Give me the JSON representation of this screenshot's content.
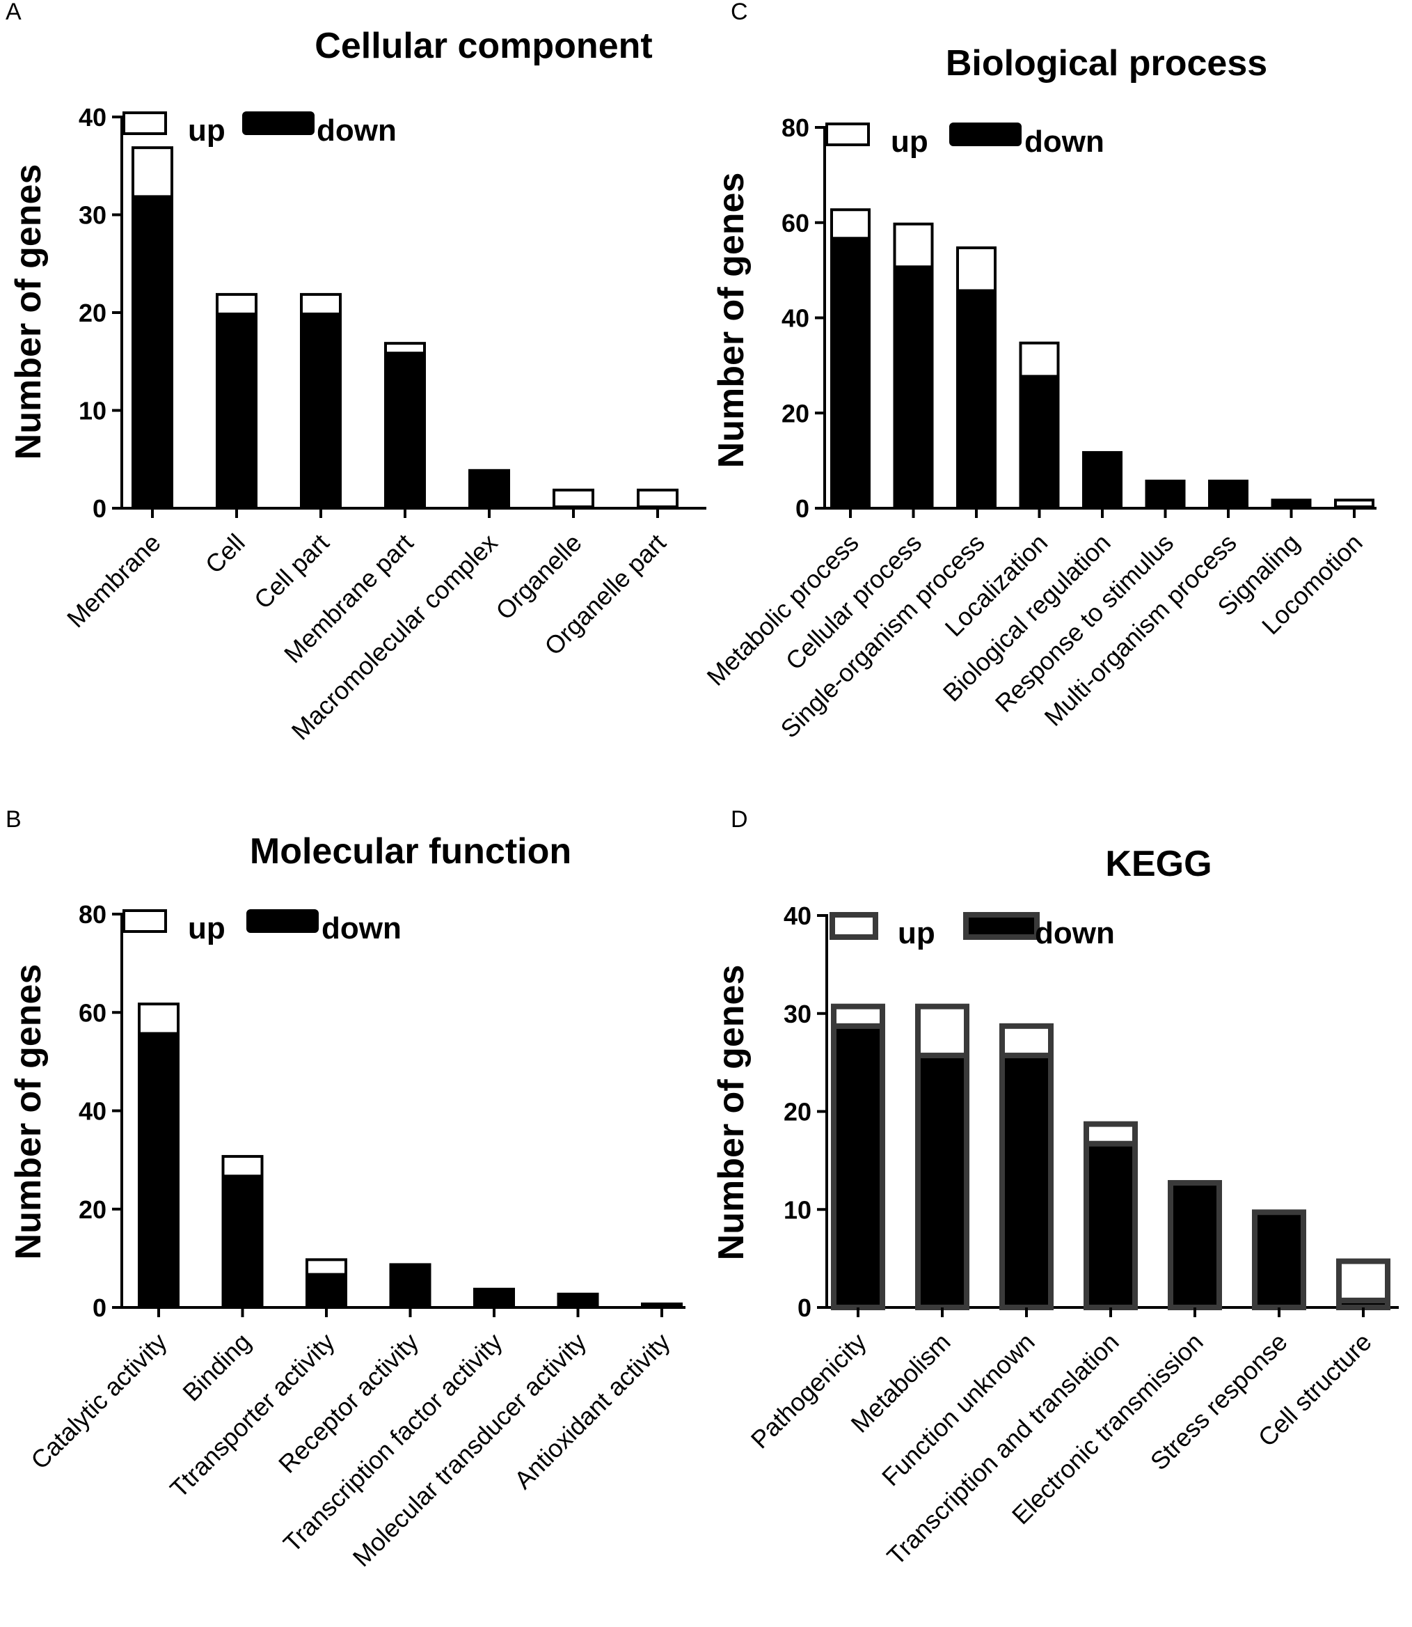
{
  "chart_data": [
    {
      "id": "A",
      "panel_label": "A",
      "type": "bar",
      "stacked": true,
      "title": "Cellular component",
      "xlabel": "",
      "ylabel": "Number of genes",
      "ylim": [
        0,
        40
      ],
      "yticks": [
        0,
        10,
        20,
        30,
        40
      ],
      "categories": [
        "Membrane",
        "Cell",
        "Cell part",
        "Membrane part",
        "Macromolecular complex",
        "Organelle",
        "Organelle part"
      ],
      "series": [
        {
          "name": "down",
          "values": [
            32,
            20,
            20,
            16,
            4,
            0,
            0
          ]
        },
        {
          "name": "up",
          "values": [
            5,
            2,
            2,
            1,
            0,
            2,
            2
          ]
        }
      ],
      "legend": [
        "up",
        "down"
      ],
      "legend_position": "top-left"
    },
    {
      "id": "C",
      "panel_label": "C",
      "type": "bar",
      "stacked": true,
      "title": "Biological process",
      "xlabel": "",
      "ylabel": "Number of genes",
      "ylim": [
        0,
        80
      ],
      "yticks": [
        0,
        20,
        40,
        60,
        80
      ],
      "categories": [
        "Metabolic process",
        "Cellular process",
        "Single-organism process",
        "Localization",
        "Biological regulation",
        "Response to stimulus",
        "Multi-organism process",
        "Signaling",
        "Locomotion"
      ],
      "series": [
        {
          "name": "down",
          "values": [
            57,
            51,
            46,
            28,
            12,
            6,
            6,
            2,
            0
          ]
        },
        {
          "name": "up",
          "values": [
            6,
            9,
            9,
            7,
            0,
            0,
            0,
            0,
            2
          ]
        }
      ],
      "legend": [
        "up",
        "down"
      ],
      "legend_position": "top-left"
    },
    {
      "id": "B",
      "panel_label": "B",
      "type": "bar",
      "stacked": true,
      "title": "Molecular function",
      "xlabel": "",
      "ylabel": "Number of genes",
      "ylim": [
        0,
        80
      ],
      "yticks": [
        0,
        20,
        40,
        60,
        80
      ],
      "categories": [
        "Catalytic activity",
        "Binding",
        "Ttransporter activity",
        "Receptor activity",
        "Transcription factor activity",
        "Molecular transducer activity",
        "Antioxidant activity"
      ],
      "series": [
        {
          "name": "down",
          "values": [
            56,
            27,
            7,
            9,
            4,
            3,
            1
          ]
        },
        {
          "name": "up",
          "values": [
            6,
            4,
            3,
            0,
            0,
            0,
            0
          ]
        }
      ],
      "legend": [
        "up",
        "down"
      ],
      "legend_position": "top-left"
    },
    {
      "id": "D",
      "panel_label": "D",
      "type": "bar",
      "stacked": true,
      "title": "KEGG",
      "xlabel": "",
      "ylabel": "Number of genes",
      "ylim": [
        0,
        40
      ],
      "yticks": [
        0,
        10,
        20,
        30,
        40
      ],
      "categories": [
        "Pathogenicity",
        "Metabolism",
        "Function unknown",
        "Transcription and translation",
        "Electronic transmission",
        "Stress response",
        "Cell structure"
      ],
      "series": [
        {
          "name": "down",
          "values": [
            29,
            26,
            26,
            17,
            13,
            10,
            1
          ]
        },
        {
          "name": "up",
          "values": [
            2,
            5,
            3,
            2,
            0,
            0,
            4
          ]
        }
      ],
      "legend": [
        "up",
        "down"
      ],
      "legend_position": "top-left"
    }
  ],
  "colors": {
    "up_fill": "#ffffff",
    "down_fill": "#000000",
    "stroke": "#000000",
    "kegg_stroke": "#3a3a3a"
  }
}
